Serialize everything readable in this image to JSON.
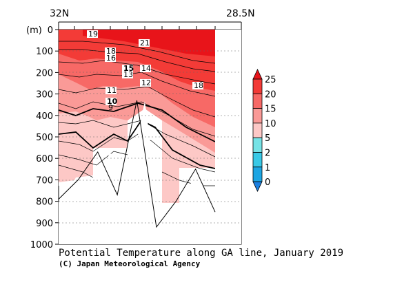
{
  "chart_data": {
    "type": "contour",
    "title": "Potential Temperature along GA line, January 2019",
    "credit": "(C) Japan Meteorological Agency",
    "x_labels": {
      "left": "32N",
      "right": "28.5N"
    },
    "ylabel": "(m)",
    "ylim": [
      0,
      1000
    ],
    "y_ticks": [
      "0",
      "100",
      "200",
      "300",
      "400",
      "500",
      "600",
      "700",
      "800",
      "900",
      "1000"
    ],
    "contour_labels": [
      "19",
      "21",
      "18",
      "16",
      "15",
      "14",
      "13",
      "12",
      "18",
      "11",
      "10",
      "9"
    ],
    "colorbar": {
      "levels": [
        "25",
        "20",
        "15",
        "10",
        "5",
        "2",
        "1",
        "0"
      ],
      "colors": [
        "#e8141a",
        "#f33b37",
        "#f76966",
        "#fa9a97",
        "#fdc8c6",
        "#76e3e6",
        "#39c9e6",
        "#1da6e3",
        "#1a7fe0"
      ]
    },
    "bottom_depth_m": [
      790,
      700,
      570,
      770,
      330,
      920,
      800,
      650,
      850
    ],
    "bottom_x_km": [
      0,
      50,
      100,
      150,
      200,
      250,
      300,
      350,
      400
    ]
  }
}
